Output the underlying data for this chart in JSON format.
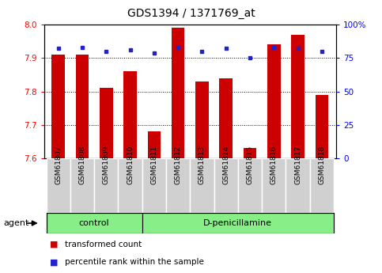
{
  "title": "GDS1394 / 1371769_at",
  "samples": [
    "GSM61807",
    "GSM61808",
    "GSM61809",
    "GSM61810",
    "GSM61811",
    "GSM61812",
    "GSM61813",
    "GSM61814",
    "GSM61815",
    "GSM61816",
    "GSM61817",
    "GSM61818"
  ],
  "bar_values": [
    7.91,
    7.91,
    7.81,
    7.86,
    7.68,
    7.99,
    7.83,
    7.84,
    7.63,
    7.94,
    7.97,
    7.79
  ],
  "percentile_values": [
    82,
    83,
    80,
    81,
    79,
    83,
    80,
    82,
    75,
    83,
    82,
    80
  ],
  "ylim_left": [
    7.6,
    8.0
  ],
  "ylim_right": [
    0,
    100
  ],
  "yticks_left": [
    7.6,
    7.7,
    7.8,
    7.9,
    8.0
  ],
  "yticks_right": [
    0,
    25,
    50,
    75,
    100
  ],
  "ytick_labels_right": [
    "0",
    "25",
    "50",
    "75",
    "100%"
  ],
  "bar_color": "#cc0000",
  "dot_color": "#2222cc",
  "bar_width": 0.55,
  "control_count": 4,
  "group_labels": [
    "control",
    "D-penicillamine"
  ],
  "agent_label": "agent",
  "legend_items": [
    {
      "color": "#cc0000",
      "label": "transformed count"
    },
    {
      "color": "#2222cc",
      "label": "percentile rank within the sample"
    }
  ],
  "group_green": "#88ee88",
  "tick_bg": "#d0d0d0",
  "title_fontsize": 10,
  "axis_fontsize": 7.5,
  "tick_fontsize": 6.5,
  "group_fontsize": 8,
  "legend_fontsize": 7.5
}
